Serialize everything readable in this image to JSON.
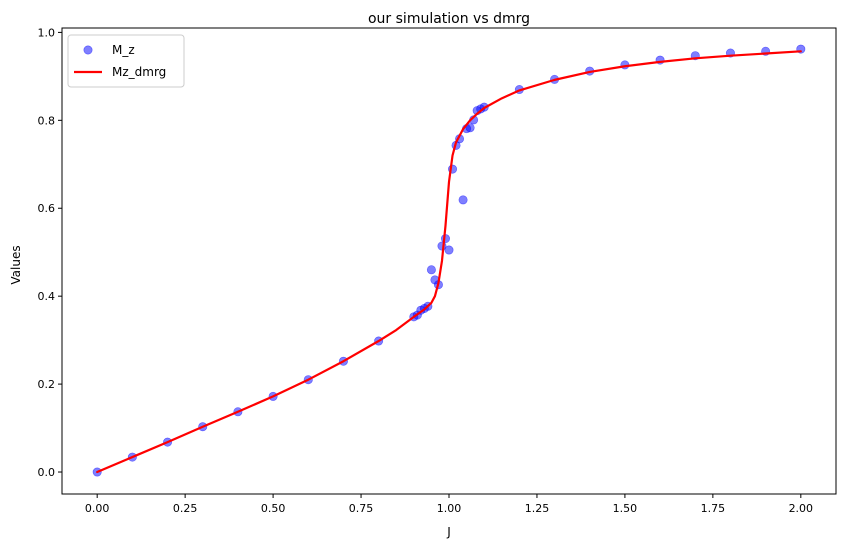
{
  "chart_data": {
    "type": "scatter",
    "title": "our simulation vs dmrg",
    "xlabel": "J",
    "ylabel": "Values",
    "xlim": [
      -0.1,
      2.1
    ],
    "ylim": [
      -0.05,
      1.01
    ],
    "xticks": [
      0.0,
      0.25,
      0.5,
      0.75,
      1.0,
      1.25,
      1.5,
      1.75,
      2.0
    ],
    "xtick_labels": [
      "0.00",
      "0.25",
      "0.50",
      "0.75",
      "1.00",
      "1.25",
      "1.50",
      "1.75",
      "2.00"
    ],
    "yticks": [
      0.0,
      0.2,
      0.4,
      0.6,
      0.8,
      1.0
    ],
    "ytick_labels": [
      "0.0",
      "0.2",
      "0.4",
      "0.6",
      "0.8",
      "1.0"
    ],
    "grid": false,
    "legend_position": "upper-left",
    "legend": [
      "M_z",
      "Mz_dmrg"
    ],
    "series": [
      {
        "name": "M_z",
        "kind": "scatter",
        "color": "#0000ff",
        "opacity": 0.5,
        "x": [
          0.0,
          0.1,
          0.2,
          0.3,
          0.4,
          0.5,
          0.6,
          0.7,
          0.8,
          0.9,
          0.91,
          0.92,
          0.93,
          0.94,
          0.95,
          0.96,
          0.97,
          0.98,
          0.99,
          1.0,
          1.01,
          1.02,
          1.03,
          1.04,
          1.05,
          1.06,
          1.07,
          1.08,
          1.09,
          1.1,
          1.2,
          1.3,
          1.4,
          1.5,
          1.6,
          1.7,
          1.8,
          1.9,
          2.0
        ],
        "y": [
          0.0,
          0.034,
          0.068,
          0.103,
          0.137,
          0.172,
          0.21,
          0.252,
          0.298,
          0.353,
          0.357,
          0.368,
          0.372,
          0.377,
          0.46,
          0.437,
          0.426,
          0.514,
          0.531,
          0.505,
          0.689,
          0.743,
          0.758,
          0.619,
          0.781,
          0.783,
          0.801,
          0.822,
          0.826,
          0.83,
          0.87,
          0.893,
          0.912,
          0.926,
          0.937,
          0.947,
          0.953,
          0.957,
          0.962
        ]
      },
      {
        "name": "Mz_dmrg",
        "kind": "line",
        "color": "#ff0000",
        "x": [
          0.0,
          0.1,
          0.2,
          0.3,
          0.4,
          0.5,
          0.6,
          0.7,
          0.8,
          0.85,
          0.9,
          0.93,
          0.95,
          0.96,
          0.97,
          0.98,
          0.99,
          1.0,
          1.01,
          1.02,
          1.04,
          1.06,
          1.08,
          1.1,
          1.15,
          1.2,
          1.3,
          1.4,
          1.5,
          1.6,
          1.7,
          1.8,
          1.9,
          2.0
        ],
        "y": [
          0.0,
          0.034,
          0.068,
          0.103,
          0.137,
          0.172,
          0.21,
          0.252,
          0.298,
          0.323,
          0.353,
          0.37,
          0.385,
          0.4,
          0.43,
          0.48,
          0.56,
          0.66,
          0.72,
          0.75,
          0.78,
          0.8,
          0.815,
          0.828,
          0.85,
          0.868,
          0.892,
          0.91,
          0.923,
          0.933,
          0.941,
          0.947,
          0.952,
          0.957
        ]
      }
    ]
  }
}
